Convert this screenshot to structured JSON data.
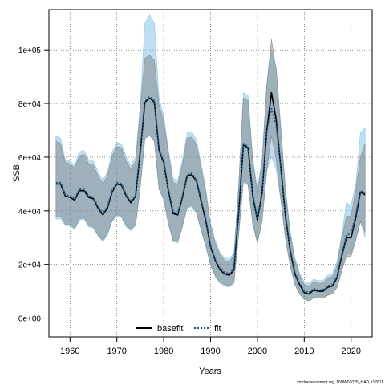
{
  "chart_data": {
    "type": "line",
    "xlabel": "Years",
    "ylabel": "SSB",
    "xlim": [
      1955.5,
      2024.5
    ],
    "ylim": [
      -7000,
      115000
    ],
    "x_ticks": [
      1960,
      1970,
      1980,
      1990,
      2000,
      2010,
      2020
    ],
    "x_tick_labels": [
      "1960",
      "1970",
      "1980",
      "1990",
      "2000",
      "2010",
      "2020"
    ],
    "y_ticks": [
      0,
      20000,
      40000,
      60000,
      80000,
      100000
    ],
    "y_tick_labels": [
      "0e+00",
      "2e+04",
      "4e+04",
      "6e+04",
      "8e+04",
      "1e+05"
    ],
    "grid": true,
    "legend_position": "bottom-center",
    "credit": "stockassessment.org, NWW02025_HAD, r17611",
    "x": [
      1957,
      1958,
      1959,
      1960,
      1961,
      1962,
      1963,
      1964,
      1965,
      1966,
      1967,
      1968,
      1969,
      1970,
      1971,
      1972,
      1973,
      1974,
      1975,
      1976,
      1977,
      1978,
      1979,
      1980,
      1981,
      1982,
      1983,
      1984,
      1985,
      1986,
      1987,
      1988,
      1989,
      1990,
      1991,
      1992,
      1993,
      1994,
      1995,
      1996,
      1997,
      1998,
      1999,
      2000,
      2001,
      2002,
      2003,
      2004,
      2005,
      2006,
      2007,
      2008,
      2009,
      2010,
      2011,
      2012,
      2013,
      2014,
      2015,
      2016,
      2017,
      2018,
      2019,
      2020,
      2021,
      2022,
      2023
    ],
    "series": [
      {
        "name": "basefit",
        "color": "#000000",
        "band_color": "#777777",
        "values": [
          50000,
          50000,
          45500,
          45000,
          44000,
          47500,
          47500,
          45000,
          44500,
          41000,
          38500,
          41000,
          47000,
          50000,
          49500,
          45500,
          43000,
          45500,
          62000,
          80500,
          82000,
          80500,
          62500,
          58000,
          47500,
          39000,
          38500,
          45000,
          53000,
          53500,
          51000,
          43500,
          36000,
          26500,
          21500,
          18000,
          16500,
          16000,
          18000,
          39000,
          64500,
          63500,
          45500,
          36500,
          46500,
          70000,
          84000,
          74000,
          56000,
          38000,
          25000,
          16500,
          12500,
          9500,
          9000,
          10500,
          10000,
          10000,
          11500,
          12000,
          15000,
          23000,
          30000,
          30000,
          37500,
          47000,
          46000
        ],
        "lower": [
          38000,
          38000,
          35000,
          35000,
          33500,
          37000,
          37500,
          34500,
          34000,
          31000,
          29000,
          31500,
          36500,
          38500,
          38000,
          34500,
          33000,
          35000,
          49000,
          67000,
          68000,
          66000,
          48000,
          44500,
          35500,
          29000,
          28500,
          34500,
          41500,
          42000,
          39500,
          33000,
          27000,
          20000,
          16000,
          13500,
          12500,
          12000,
          13500,
          31000,
          51000,
          50000,
          35000,
          28000,
          36000,
          55000,
          68000,
          59000,
          44000,
          29500,
          19500,
          12500,
          9000,
          7000,
          6500,
          7500,
          7500,
          7500,
          8500,
          9000,
          11500,
          17500,
          23000,
          23000,
          29000,
          36000,
          32000
        ],
        "upper": [
          66000,
          65000,
          58000,
          57500,
          56000,
          60500,
          61000,
          57500,
          57000,
          53000,
          50000,
          53000,
          60500,
          64000,
          63500,
          58500,
          55500,
          58500,
          78000,
          97000,
          98000,
          96000,
          79500,
          73500,
          61500,
          50500,
          50000,
          57500,
          67000,
          67500,
          64500,
          56000,
          46500,
          34500,
          28000,
          23500,
          21500,
          21000,
          23500,
          48500,
          82000,
          81000,
          58500,
          46500,
          58000,
          87000,
          104000,
          92500,
          70000,
          47500,
          31500,
          21500,
          16000,
          12500,
          12000,
          13500,
          13000,
          13000,
          15000,
          15500,
          19500,
          29500,
          38000,
          38000,
          48000,
          60000,
          65000
        ]
      },
      {
        "name": "fit",
        "color": "#1a5a8a",
        "band_color": "#6fb8e0",
        "values": [
          50500,
          50500,
          46000,
          45500,
          44500,
          48000,
          48000,
          45500,
          45000,
          41500,
          39000,
          41500,
          47500,
          50500,
          50000,
          46000,
          43500,
          46000,
          62500,
          81000,
          82500,
          81000,
          63000,
          58500,
          48000,
          39500,
          39000,
          45500,
          53500,
          54000,
          51500,
          44000,
          36500,
          27000,
          22000,
          18500,
          17000,
          16500,
          18500,
          39500,
          65000,
          64000,
          46000,
          37000,
          47000,
          70500,
          78000,
          72000,
          56500,
          38500,
          25500,
          17000,
          13000,
          10000,
          9500,
          11000,
          10500,
          10500,
          12000,
          12500,
          15500,
          23500,
          31000,
          31500,
          38500,
          47500,
          46500
        ],
        "lower": [
          37000,
          37000,
          34500,
          34500,
          33000,
          36500,
          37000,
          34000,
          33500,
          30500,
          28500,
          31000,
          36000,
          38000,
          37500,
          34000,
          32500,
          34500,
          48500,
          67000,
          68000,
          66000,
          48000,
          44000,
          35000,
          28500,
          28000,
          34000,
          41000,
          41500,
          39000,
          32500,
          26500,
          19500,
          15500,
          13000,
          12000,
          11500,
          13000,
          30500,
          50500,
          49500,
          35000,
          28000,
          36000,
          55000,
          60000,
          55500,
          44000,
          29500,
          19500,
          12500,
          9000,
          7000,
          6500,
          7500,
          7500,
          7500,
          8500,
          9000,
          11500,
          17500,
          24000,
          24000,
          29500,
          36000,
          30000
        ],
        "upper": [
          68000,
          67000,
          59000,
          58500,
          57000,
          62000,
          62500,
          59000,
          58500,
          54500,
          51500,
          54500,
          62000,
          65500,
          65000,
          60000,
          57000,
          60000,
          80000,
          110000,
          113000,
          110000,
          82000,
          75500,
          63000,
          52000,
          51500,
          59000,
          69000,
          69500,
          66500,
          57500,
          48000,
          35500,
          29000,
          24500,
          22500,
          22000,
          24500,
          49500,
          84000,
          83000,
          60000,
          48000,
          59500,
          87500,
          100000,
          93500,
          71500,
          48500,
          32500,
          22500,
          17000,
          13500,
          13000,
          14500,
          14000,
          14000,
          16000,
          16500,
          21000,
          31000,
          43000,
          42000,
          50000,
          69000,
          71000
        ]
      }
    ]
  }
}
